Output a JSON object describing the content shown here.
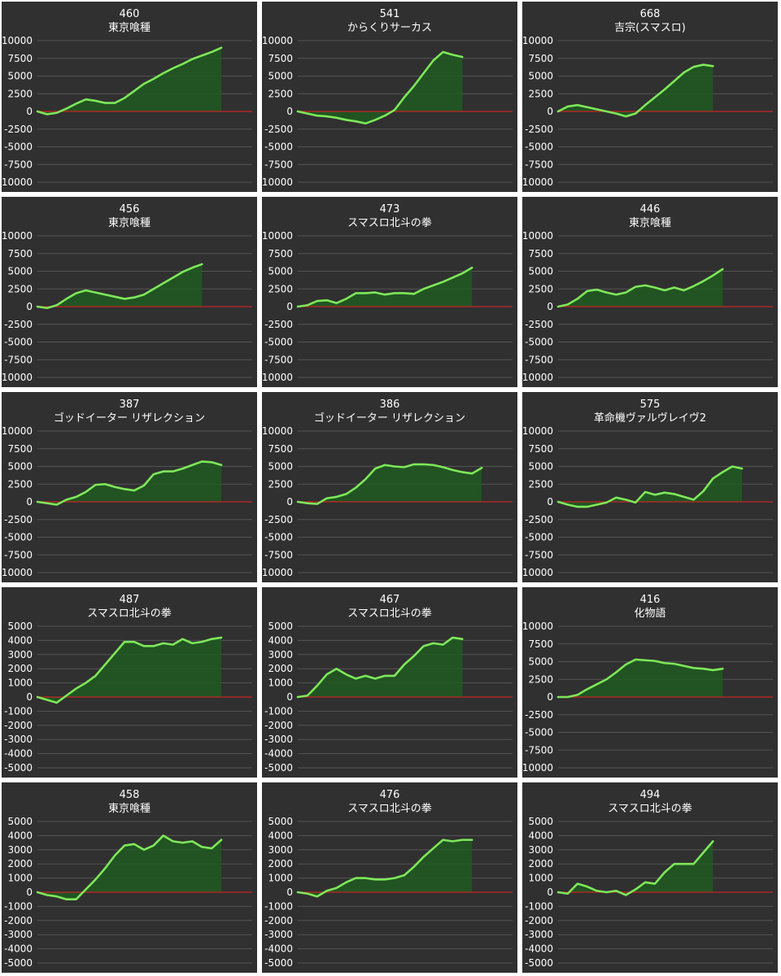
{
  "chart_data": [
    {
      "type": "area",
      "title": "460",
      "subtitle": "東京喰種",
      "ylim": [
        -10000,
        10000
      ],
      "yticks": [
        10000,
        7500,
        5000,
        2500,
        0,
        -2500,
        -5000,
        -7500,
        -10000
      ],
      "values": [
        0,
        -400,
        -200,
        400,
        1100,
        1700,
        1500,
        1200,
        1200,
        1900,
        2900,
        3900,
        4600,
        5400,
        6100,
        6700,
        7400,
        7900,
        8400,
        9000
      ]
    },
    {
      "type": "area",
      "title": "541",
      "subtitle": "からくりサーカス",
      "ylim": [
        -10000,
        10000
      ],
      "yticks": [
        10000,
        7500,
        5000,
        2500,
        0,
        -2500,
        -5000,
        -7500,
        -10000
      ],
      "values": [
        0,
        -300,
        -600,
        -700,
        -900,
        -1200,
        -1400,
        -1700,
        -1200,
        -600,
        200,
        2000,
        3600,
        5400,
        7200,
        8400,
        8000,
        7700
      ]
    },
    {
      "type": "area",
      "title": "668",
      "subtitle": "吉宗(スマスロ)",
      "ylim": [
        -10000,
        10000
      ],
      "yticks": [
        10000,
        7500,
        5000,
        2500,
        0,
        -2500,
        -5000,
        -7500,
        -10000
      ],
      "values": [
        0,
        700,
        900,
        600,
        300,
        0,
        -300,
        -700,
        -300,
        900,
        2000,
        3100,
        4300,
        5500,
        6300,
        6600,
        6400
      ]
    },
    {
      "type": "area",
      "title": "456",
      "subtitle": "東京喰種",
      "ylim": [
        -10000,
        10000
      ],
      "yticks": [
        10000,
        7500,
        5000,
        2500,
        0,
        -2500,
        -5000,
        -7500,
        -10000
      ],
      "values": [
        0,
        -200,
        200,
        1100,
        1900,
        2300,
        2000,
        1700,
        1400,
        1100,
        1300,
        1700,
        2500,
        3300,
        4100,
        4900,
        5500,
        6000
      ]
    },
    {
      "type": "area",
      "title": "473",
      "subtitle": "スマスロ北斗の拳",
      "ylim": [
        -10000,
        10000
      ],
      "yticks": [
        10000,
        7500,
        5000,
        2500,
        0,
        -2500,
        -5000,
        -7500,
        -10000
      ],
      "values": [
        0,
        200,
        800,
        900,
        500,
        1100,
        1900,
        1900,
        2000,
        1700,
        1900,
        1900,
        1800,
        2500,
        3000,
        3500,
        4100,
        4700,
        5500
      ]
    },
    {
      "type": "area",
      "title": "446",
      "subtitle": "東京喰種",
      "ylim": [
        -10000,
        10000
      ],
      "yticks": [
        10000,
        7500,
        5000,
        2500,
        0,
        -2500,
        -5000,
        -7500,
        -10000
      ],
      "values": [
        0,
        300,
        1100,
        2200,
        2400,
        2000,
        1700,
        2000,
        2800,
        3000,
        2700,
        2300,
        2700,
        2300,
        2900,
        3600,
        4400,
        5300
      ]
    },
    {
      "type": "area",
      "title": "387",
      "subtitle": "ゴッドイーター リザレクション",
      "ylim": [
        -10000,
        10000
      ],
      "yticks": [
        10000,
        7500,
        5000,
        2500,
        0,
        -2500,
        -5000,
        -7500,
        -10000
      ],
      "values": [
        0,
        -200,
        -400,
        300,
        700,
        1400,
        2400,
        2500,
        2100,
        1800,
        1600,
        2300,
        3900,
        4300,
        4300,
        4700,
        5200,
        5700,
        5600,
        5200
      ]
    },
    {
      "type": "area",
      "title": "386",
      "subtitle": "ゴッドイーター リザレクション",
      "ylim": [
        -10000,
        10000
      ],
      "yticks": [
        10000,
        7500,
        5000,
        2500,
        0,
        -2500,
        -5000,
        -7500,
        -10000
      ],
      "values": [
        0,
        -200,
        -300,
        500,
        700,
        1100,
        2000,
        3200,
        4700,
        5200,
        5000,
        4900,
        5300,
        5300,
        5200,
        4900,
        4500,
        4200,
        4000,
        4800
      ]
    },
    {
      "type": "area",
      "title": "575",
      "subtitle": "革命機ヴァルヴレイヴ2",
      "ylim": [
        -10000,
        10000
      ],
      "yticks": [
        10000,
        7500,
        5000,
        2500,
        0,
        -2500,
        -5000,
        -7500,
        -10000
      ],
      "values": [
        0,
        -400,
        -700,
        -700,
        -400,
        -100,
        600,
        300,
        -100,
        1400,
        1000,
        1300,
        1100,
        700,
        300,
        1500,
        3300,
        4200,
        5000,
        4700
      ]
    },
    {
      "type": "area",
      "title": "487",
      "subtitle": "スマスロ北斗の拳",
      "ylim": [
        -5000,
        5000
      ],
      "yticks": [
        5000,
        4000,
        3000,
        2000,
        1000,
        0,
        -1000,
        -2000,
        -3000,
        -4000,
        -5000
      ],
      "values": [
        0,
        -200,
        -400,
        100,
        600,
        1000,
        1500,
        2300,
        3100,
        3900,
        3900,
        3600,
        3600,
        3800,
        3700,
        4100,
        3800,
        3900,
        4100,
        4200
      ]
    },
    {
      "type": "area",
      "title": "467",
      "subtitle": "スマスロ北斗の拳",
      "ylim": [
        -5000,
        5000
      ],
      "yticks": [
        5000,
        4000,
        3000,
        2000,
        1000,
        0,
        -1000,
        -2000,
        -3000,
        -4000,
        -5000
      ],
      "values": [
        0,
        100,
        800,
        1600,
        2000,
        1600,
        1300,
        1500,
        1300,
        1500,
        1500,
        2300,
        2900,
        3600,
        3800,
        3700,
        4200,
        4100
      ]
    },
    {
      "type": "area",
      "title": "416",
      "subtitle": "化物語",
      "ylim": [
        -10000,
        10000
      ],
      "yticks": [
        10000,
        7500,
        5000,
        2500,
        0,
        -2500,
        -5000,
        -7500,
        -10000
      ],
      "values": [
        0,
        0,
        300,
        1100,
        1800,
        2500,
        3500,
        4600,
        5300,
        5200,
        5100,
        4800,
        4700,
        4400,
        4100,
        4000,
        3800,
        4000
      ]
    },
    {
      "type": "area",
      "title": "458",
      "subtitle": "東京喰種",
      "ylim": [
        -5000,
        5000
      ],
      "yticks": [
        5000,
        4000,
        3000,
        2000,
        1000,
        0,
        -1000,
        -2000,
        -3000,
        -4000,
        -5000
      ],
      "values": [
        0,
        -200,
        -300,
        -500,
        -500,
        200,
        900,
        1700,
        2600,
        3300,
        3400,
        3000,
        3300,
        4000,
        3600,
        3500,
        3600,
        3200,
        3100,
        3700
      ]
    },
    {
      "type": "area",
      "title": "476",
      "subtitle": "スマスロ北斗の拳",
      "ylim": [
        -5000,
        5000
      ],
      "yticks": [
        5000,
        4000,
        3000,
        2000,
        1000,
        0,
        -1000,
        -2000,
        -3000,
        -4000,
        -5000
      ],
      "values": [
        0,
        -100,
        -300,
        100,
        300,
        700,
        1000,
        1000,
        900,
        900,
        1000,
        1200,
        1800,
        2500,
        3100,
        3700,
        3600,
        3700,
        3700
      ]
    },
    {
      "type": "area",
      "title": "494",
      "subtitle": "スマスロ北斗の拳",
      "ylim": [
        -5000,
        5000
      ],
      "yticks": [
        5000,
        4000,
        3000,
        2000,
        1000,
        0,
        -1000,
        -2000,
        -3000,
        -4000,
        -5000
      ],
      "values": [
        0,
        -100,
        600,
        400,
        100,
        0,
        100,
        -200,
        200,
        700,
        600,
        1400,
        2000,
        2000,
        2000,
        2800,
        3600
      ]
    }
  ],
  "colors": {
    "panel_bg": "#303030",
    "line": "#7ee85a",
    "fill": "#1e5a20",
    "zero_line": "#c62424",
    "grid": "#545454",
    "text": "#ffffff"
  }
}
